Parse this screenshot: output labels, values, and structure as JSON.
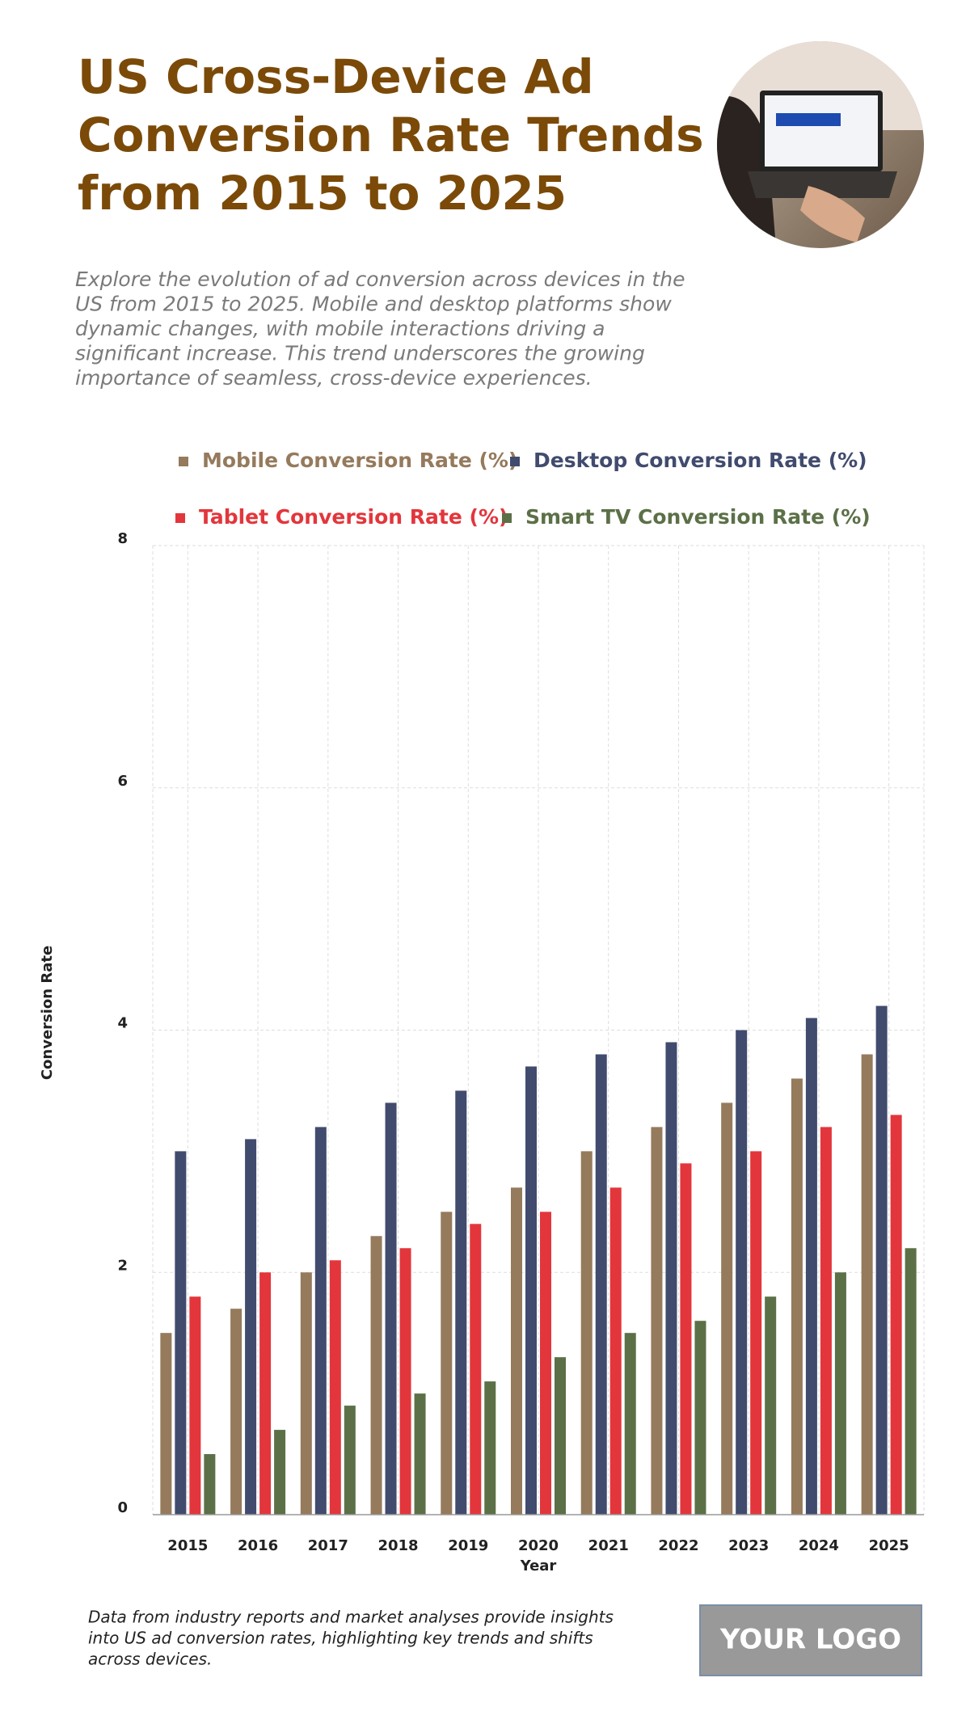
{
  "chart_data": {
    "type": "bar",
    "title_lines": [
      "US Cross-Device Ad",
      "Conversion Rate Trends",
      "from 2015 to 2025"
    ],
    "subtitle_lines": [
      "Explore the evolution of ad conversion across devices in the",
      "US from 2015 to 2025. Mobile and desktop platforms show",
      "dynamic changes, with mobile interactions driving a",
      "significant increase. This trend underscores the growing",
      "importance of seamless, cross-device experiences."
    ],
    "x_label": "Year",
    "y_label": "Conversion Rate",
    "categories": [
      "2015",
      "2016",
      "2017",
      "2018",
      "2019",
      "2020",
      "2021",
      "2022",
      "2023",
      "2024",
      "2025"
    ],
    "series": [
      {
        "name": "Mobile Conversion Rate (%)",
        "color": "#957a5c",
        "values": [
          1.5,
          1.7,
          2.0,
          2.3,
          2.5,
          2.7,
          3.0,
          3.2,
          3.4,
          3.6,
          3.8
        ]
      },
      {
        "name": "Desktop Conversion Rate (%)",
        "color": "#414b6e",
        "values": [
          3.0,
          3.1,
          3.2,
          3.4,
          3.5,
          3.7,
          3.8,
          3.9,
          4.0,
          4.1,
          4.2
        ]
      },
      {
        "name": "Tablet Conversion Rate (%)",
        "color": "#e2363c",
        "values": [
          1.8,
          2.0,
          2.1,
          2.2,
          2.4,
          2.5,
          2.7,
          2.9,
          3.0,
          3.2,
          3.3
        ]
      },
      {
        "name": "Smart TV Conversion Rate (%)",
        "color": "#5b7047",
        "values": [
          0.5,
          0.7,
          0.9,
          1.0,
          1.1,
          1.3,
          1.5,
          1.6,
          1.8,
          2.0,
          2.2
        ]
      }
    ],
    "ylim": [
      0,
      8
    ],
    "yticks": [
      0,
      2,
      4,
      6,
      8
    ],
    "grid": true,
    "footer_lines": [
      "Data from industry reports and market analyses provide insights",
      "into US ad conversion rates, highlighting key trends and shifts",
      "across devices."
    ],
    "logo": "YOUR LOGO"
  }
}
